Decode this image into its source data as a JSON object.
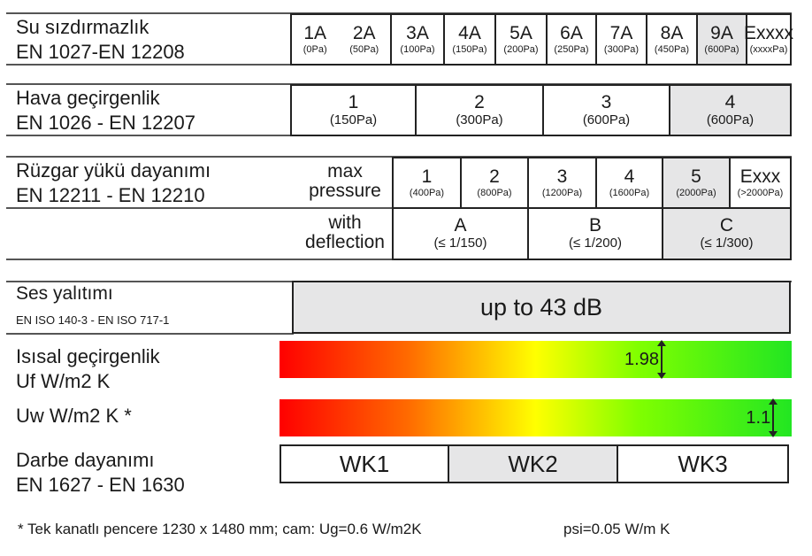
{
  "water": {
    "title": "Su sızdırmazlık",
    "standard": "EN 1027-EN 12208",
    "classes": [
      {
        "label": "1A",
        "value": "(0Pa)"
      },
      {
        "label": "2A",
        "value": "(50Pa)"
      },
      {
        "label": "3A",
        "value": "(100Pa)"
      },
      {
        "label": "4A",
        "value": "(150Pa)"
      },
      {
        "label": "5A",
        "value": "(200Pa)"
      },
      {
        "label": "6A",
        "value": "(250Pa)"
      },
      {
        "label": "7A",
        "value": "(300Pa)"
      },
      {
        "label": "8A",
        "value": "(450Pa)"
      },
      {
        "label": "9A",
        "value": "(600Pa)"
      },
      {
        "label": "Exxxx",
        "value": "(xxxxPa)"
      }
    ],
    "selected": "9A"
  },
  "air": {
    "title": "Hava geçirgenlik",
    "standard": "EN 1026 - EN 12207",
    "classes": [
      {
        "label": "1",
        "value": "(150Pa)"
      },
      {
        "label": "2",
        "value": "(300Pa)"
      },
      {
        "label": "3",
        "value": "(600Pa)"
      },
      {
        "label": "4",
        "value": "(600Pa)"
      }
    ],
    "selected": "4"
  },
  "wind": {
    "title": "Rüzgar yükü dayanımı",
    "standard": "EN 12211 - EN 12210",
    "pressure_label": "max pressure",
    "pressure_classes": [
      {
        "label": "1",
        "value": "(400Pa)"
      },
      {
        "label": "2",
        "value": "(800Pa)"
      },
      {
        "label": "3",
        "value": "(1200Pa)"
      },
      {
        "label": "4",
        "value": "(1600Pa)"
      },
      {
        "label": "5",
        "value": "(2000Pa)"
      },
      {
        "label": "Exxx",
        "value": "(>2000Pa)"
      }
    ],
    "pressure_selected": "5",
    "deflection_label": "with deflection",
    "deflection_classes": [
      {
        "label": "A",
        "value": "(≤ 1/150)"
      },
      {
        "label": "B",
        "value": "(≤ 1/200)"
      },
      {
        "label": "C",
        "value": "(≤ 1/300)"
      }
    ],
    "deflection_selected": "C"
  },
  "sound": {
    "title": "Ses yalıtımı",
    "standard": "EN ISO 140-3 - EN ISO 717-1",
    "value": "up to 43 dB"
  },
  "thermal_frame": {
    "title": "Isısal geçirgenlik",
    "unit": "Uf W/m2  K",
    "value": "1.98",
    "bar_position_percent": 76
  },
  "thermal_window": {
    "unit": "Uw W/m2  K *",
    "value": "1.1",
    "bar_position_percent": 98
  },
  "gradient_colors": [
    "#ff0000",
    "#ff6a00",
    "#ffff00",
    "#80ff00",
    "#22e622"
  ],
  "burglary": {
    "title": "Darbe dayanımı",
    "standard": "EN 1627 - EN 1630",
    "classes": [
      "WK1",
      "WK2",
      "WK3"
    ],
    "selected": "WK2"
  },
  "footnote": {
    "text": "* Tek kanatlı pencere 1230 x 1480 mm; cam: Ug=0.6 W/m2K",
    "psi": "psi=0.05 W/m K"
  },
  "highlight_color": "#e6e6e7"
}
